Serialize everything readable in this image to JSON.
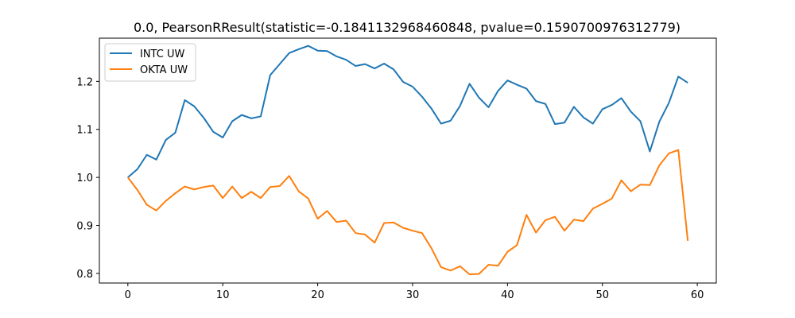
{
  "chart_data": {
    "type": "line",
    "title": "0.0, PearsonRResult(statistic=-0.1841132968460848, pvalue=0.1590700976312779)",
    "xlabel": "",
    "ylabel": "",
    "xlim": [
      -3,
      62
    ],
    "ylim": [
      0.78,
      1.29
    ],
    "xticks": [
      0,
      10,
      20,
      30,
      40,
      50,
      60
    ],
    "yticks": [
      0.8,
      0.9,
      1.0,
      1.1,
      1.2
    ],
    "ytick_labels": [
      "0.8",
      "0.9",
      "1.0",
      "1.1",
      "1.2"
    ],
    "grid": false,
    "legend_position": "upper-left",
    "x": [
      0,
      1,
      2,
      3,
      4,
      5,
      6,
      7,
      8,
      9,
      10,
      11,
      12,
      13,
      14,
      15,
      16,
      17,
      18,
      19,
      20,
      21,
      22,
      23,
      24,
      25,
      26,
      27,
      28,
      29,
      30,
      31,
      32,
      33,
      34,
      35,
      36,
      37,
      38,
      39,
      40,
      41,
      42,
      43,
      44,
      45,
      46,
      47,
      48,
      49,
      50,
      51,
      52,
      53,
      54,
      55,
      56,
      57,
      58,
      59
    ],
    "series": [
      {
        "name": "INTC UW",
        "color": "#1f77b4",
        "values": [
          1.0,
          1.017,
          1.047,
          1.037,
          1.078,
          1.093,
          1.161,
          1.148,
          1.124,
          1.095,
          1.083,
          1.117,
          1.13,
          1.123,
          1.127,
          1.213,
          1.236,
          1.259,
          1.267,
          1.274,
          1.264,
          1.263,
          1.252,
          1.245,
          1.232,
          1.236,
          1.227,
          1.237,
          1.225,
          1.199,
          1.189,
          1.168,
          1.143,
          1.112,
          1.118,
          1.149,
          1.195,
          1.166,
          1.146,
          1.18,
          1.202,
          1.193,
          1.185,
          1.159,
          1.153,
          1.111,
          1.114,
          1.147,
          1.125,
          1.112,
          1.142,
          1.151,
          1.165,
          1.137,
          1.117,
          1.054,
          1.116,
          1.155,
          1.21,
          1.197
        ]
      },
      {
        "name": "OKTA UW",
        "color": "#ff7f0e",
        "values": [
          1.0,
          0.974,
          0.943,
          0.931,
          0.951,
          0.967,
          0.981,
          0.975,
          0.98,
          0.983,
          0.957,
          0.981,
          0.957,
          0.97,
          0.957,
          0.98,
          0.982,
          1.003,
          0.971,
          0.956,
          0.914,
          0.93,
          0.907,
          0.91,
          0.884,
          0.881,
          0.864,
          0.905,
          0.906,
          0.895,
          0.889,
          0.884,
          0.852,
          0.813,
          0.806,
          0.815,
          0.798,
          0.799,
          0.818,
          0.816,
          0.845,
          0.859,
          0.922,
          0.885,
          0.911,
          0.918,
          0.889,
          0.912,
          0.909,
          0.935,
          0.945,
          0.956,
          0.994,
          0.971,
          0.985,
          0.984,
          1.025,
          1.05,
          1.057,
          0.868
        ]
      }
    ]
  }
}
